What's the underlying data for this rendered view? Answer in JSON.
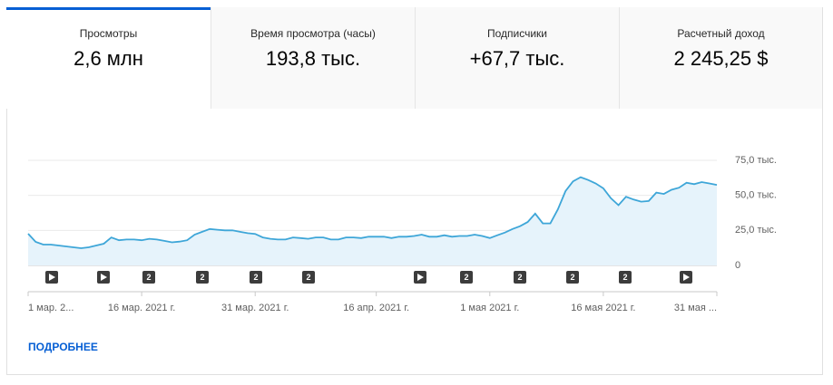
{
  "tabs": [
    {
      "title": "Просмотры",
      "value": "2,6 млн"
    },
    {
      "title": "Время просмотра (часы)",
      "value": "193,8 тыс."
    },
    {
      "title": "Подписчики",
      "value": "+67,7 тыс."
    },
    {
      "title": "Расчетный доход",
      "value": "2 245,25 $"
    }
  ],
  "chart_data": {
    "type": "area",
    "color": "#3ea6d8",
    "fill": "#e6f3fb",
    "grid": true,
    "categories": [
      "1 мар. 2...",
      null,
      null,
      null,
      null,
      null,
      null,
      null,
      null,
      null,
      null,
      null,
      null,
      null,
      null,
      "16 мар. 2021 г.",
      null,
      null,
      null,
      null,
      null,
      null,
      null,
      null,
      null,
      null,
      null,
      null,
      null,
      null,
      "31 мар. 2021 г.",
      null,
      null,
      null,
      null,
      null,
      null,
      null,
      null,
      null,
      null,
      null,
      null,
      null,
      null,
      null,
      "16 апр. 2021 г.",
      null,
      null,
      null,
      null,
      null,
      null,
      null,
      null,
      null,
      null,
      null,
      null,
      null,
      null,
      "1 мая 2021 г.",
      null,
      null,
      null,
      null,
      null,
      null,
      null,
      null,
      null,
      null,
      null,
      null,
      null,
      null,
      "16 мая 2021 г.",
      null,
      null,
      null,
      null,
      null,
      null,
      null,
      null,
      null,
      null,
      null,
      null,
      null,
      null,
      "31 мая ..."
    ],
    "values": [
      22600,
      16800,
      14900,
      14900,
      14200,
      13600,
      12900,
      12300,
      12900,
      14200,
      15500,
      20000,
      18000,
      18500,
      18500,
      18000,
      19000,
      18500,
      17500,
      16500,
      17000,
      18000,
      22000,
      24000,
      26000,
      25500,
      25000,
      25000,
      24000,
      23000,
      22500,
      20000,
      19000,
      18500,
      18500,
      20000,
      19500,
      19000,
      20000,
      20000,
      18500,
      18500,
      20000,
      20000,
      19500,
      20500,
      20500,
      20500,
      19500,
      20500,
      20500,
      21000,
      22000,
      20500,
      20500,
      21500,
      20500,
      21000,
      21000,
      22000,
      21000,
      19500,
      21500,
      23500,
      26000,
      28000,
      31000,
      37000,
      30000,
      30000,
      40000,
      53000,
      60000,
      63000,
      61000,
      58500,
      55000,
      48000,
      43000,
      49000,
      47000,
      45500,
      46000,
      52000,
      51000,
      54000,
      55500,
      59000,
      58000,
      59500,
      58500,
      57500
    ],
    "ylim": [
      0,
      75000
    ],
    "yticks": [
      {
        "value": 0,
        "label": "0"
      },
      {
        "value": 25000,
        "label": "25,0 тыс."
      },
      {
        "value": 50000,
        "label": "50,0 тыс."
      },
      {
        "value": 75000,
        "label": "75,0 тыс."
      }
    ],
    "markers": [
      "2",
      "2",
      "2",
      "2",
      "2",
      "2",
      "2",
      "2"
    ]
  },
  "link": "ПОДРОБНЕЕ"
}
